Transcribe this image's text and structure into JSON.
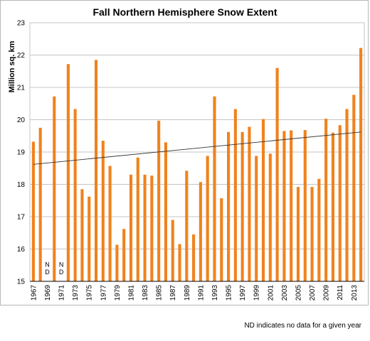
{
  "chart_data": {
    "type": "bar",
    "title": "Fall Northern Hemisphere Snow Extent",
    "xlabel": "",
    "ylabel": "Million sq. km",
    "ylim": [
      15,
      23
    ],
    "yticks": [
      15,
      16,
      17,
      18,
      19,
      20,
      21,
      22,
      23
    ],
    "grid": true,
    "legend": "none",
    "bar_color": "#f0821e",
    "trend_line": {
      "start": 18.62,
      "end": 19.62,
      "color": "#333333"
    },
    "categories": [
      1967,
      1968,
      1969,
      1970,
      1971,
      1972,
      1973,
      1974,
      1975,
      1976,
      1977,
      1978,
      1979,
      1980,
      1981,
      1982,
      1983,
      1984,
      1985,
      1986,
      1987,
      1988,
      1989,
      1990,
      1991,
      1992,
      1993,
      1994,
      1995,
      1996,
      1997,
      1998,
      1999,
      2000,
      2001,
      2002,
      2003,
      2004,
      2005,
      2006,
      2007,
      2008,
      2009,
      2010,
      2011,
      2012,
      2013,
      2014
    ],
    "xtick_labels": [
      "1967",
      "1969",
      "1971",
      "1973",
      "1975",
      "1977",
      "1979",
      "1981",
      "1983",
      "1985",
      "1987",
      "1989",
      "1991",
      "1993",
      "1995",
      "1997",
      "1999",
      "2001",
      "2003",
      "2005",
      "2007",
      "2009",
      "2011",
      "2013"
    ],
    "values": [
      19.32,
      19.75,
      null,
      20.72,
      null,
      21.72,
      20.33,
      17.85,
      17.62,
      21.85,
      19.35,
      18.57,
      16.13,
      16.62,
      18.3,
      18.83,
      18.3,
      18.27,
      19.97,
      19.3,
      16.9,
      16.15,
      18.42,
      16.45,
      18.07,
      18.88,
      20.72,
      17.57,
      19.62,
      20.33,
      19.62,
      19.78,
      18.88,
      20.02,
      18.95,
      21.6,
      19.65,
      19.67,
      17.92,
      19.68,
      17.92,
      18.17,
      20.03,
      19.6,
      19.83,
      20.33,
      20.77,
      22.22
    ],
    "nd_label": "N D",
    "annotation": "ND indicates no data for a given year"
  }
}
